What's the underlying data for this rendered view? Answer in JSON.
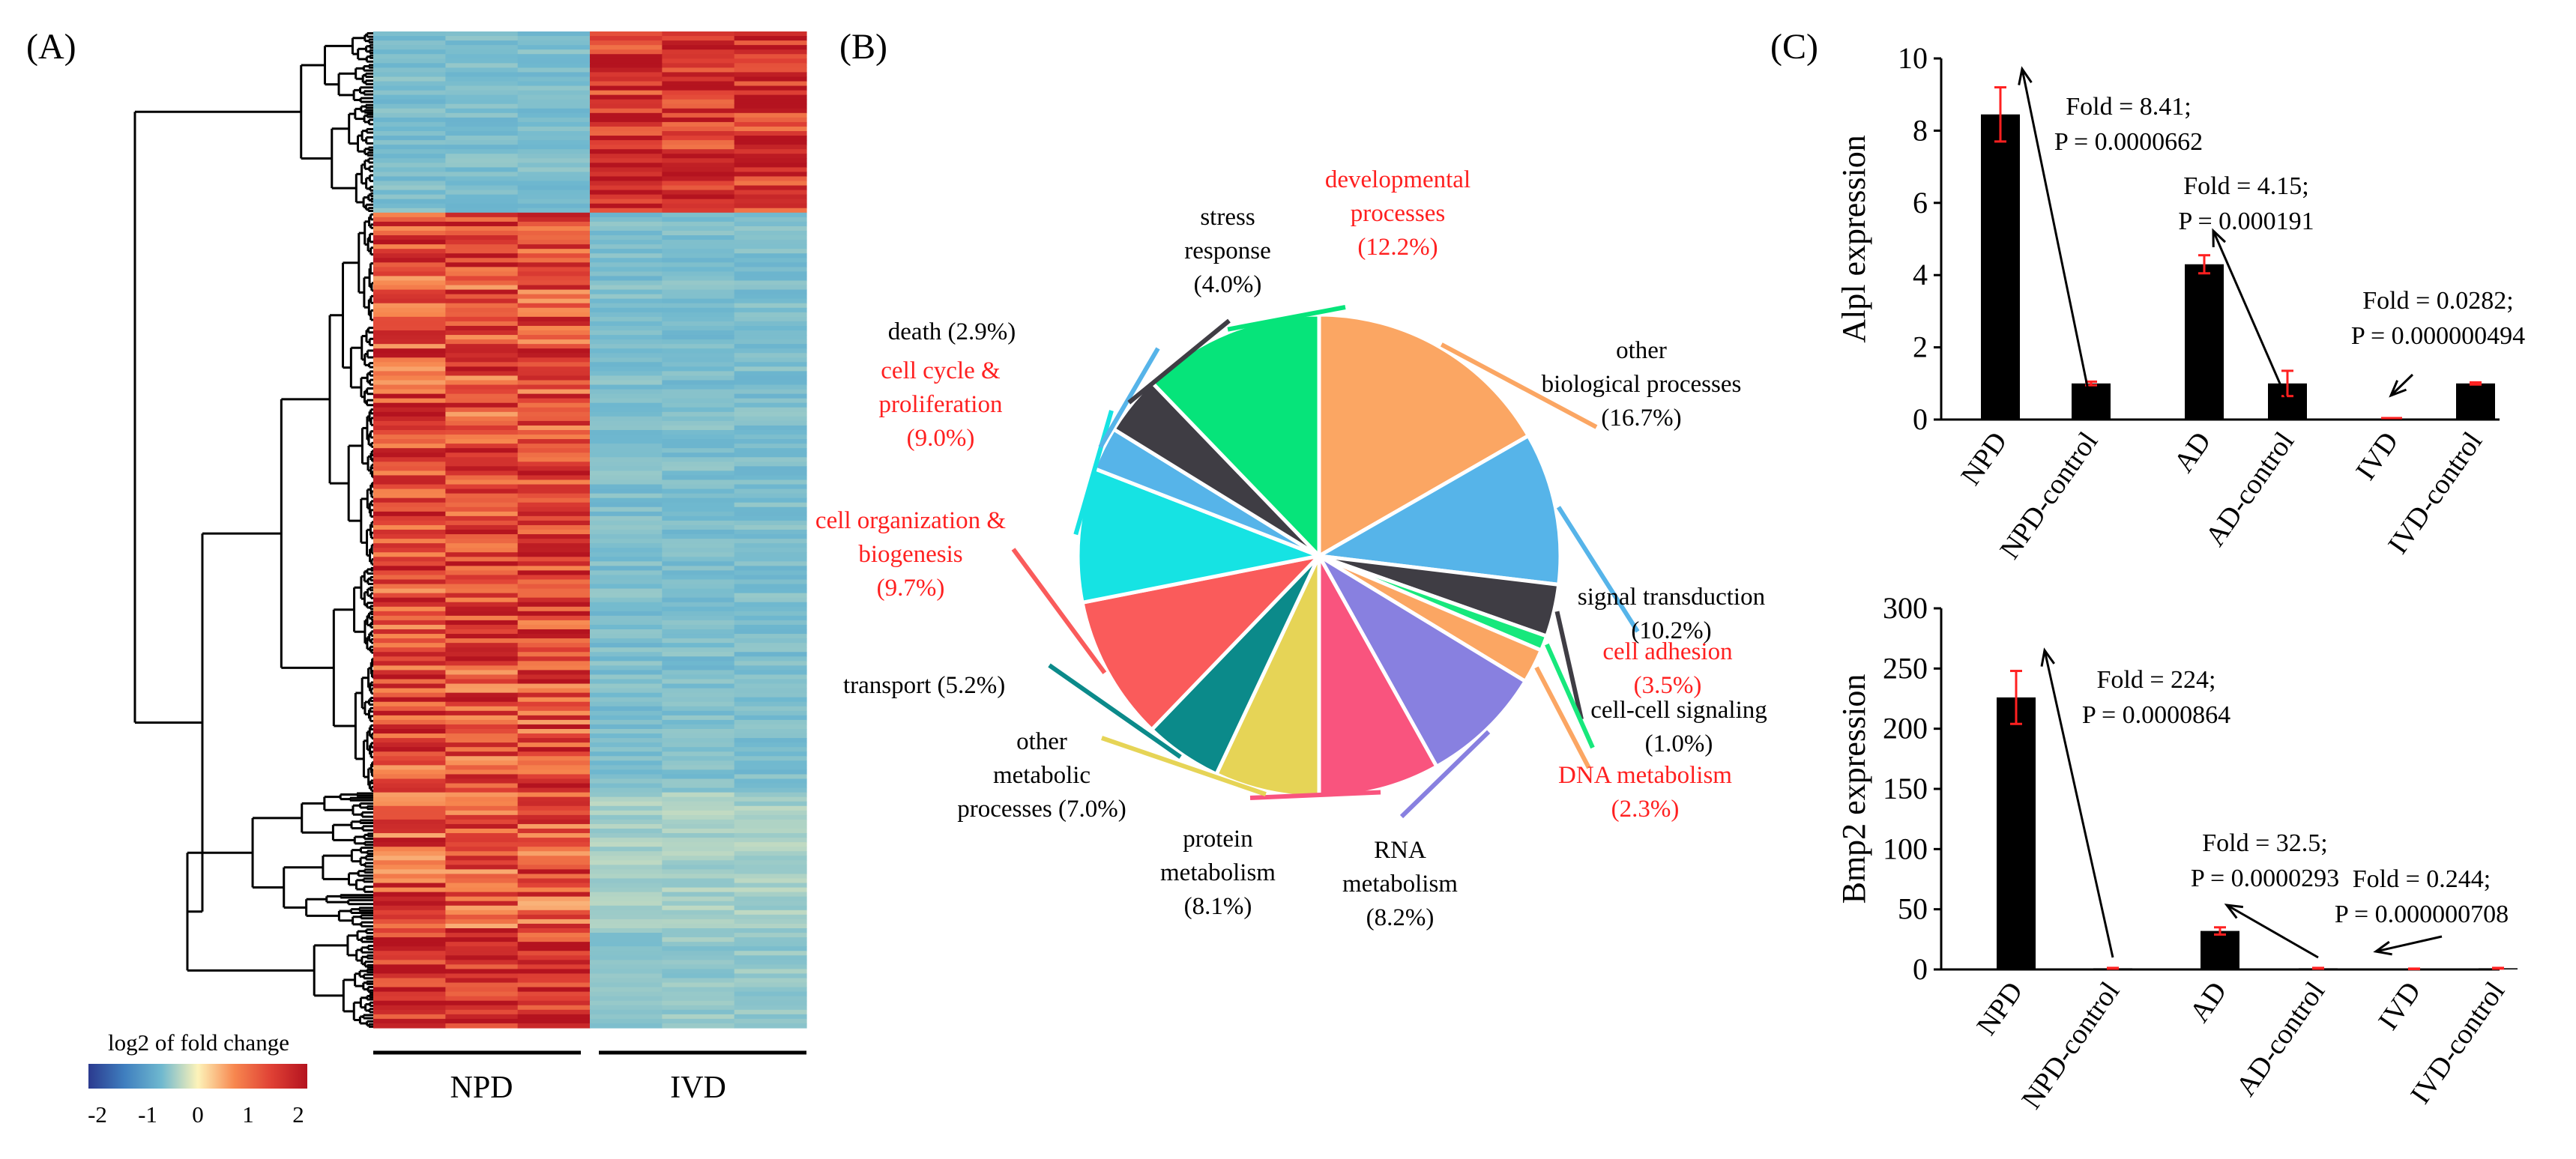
{
  "colors": {
    "black": "#000000",
    "red": "#ff2020",
    "hm_low": "#5aa9c4",
    "hm_high": "#d8232a",
    "colorbar": [
      "#2b3a8f",
      "#3f7fbf",
      "#6fb8cf",
      "#fdf3b9",
      "#f7874f",
      "#e04135",
      "#b4131f"
    ]
  },
  "chart_data": [
    {
      "panel": "(A)",
      "type": "heatmap",
      "column_groups": [
        "NPD",
        "IVD"
      ],
      "columns_per_group": 3,
      "colorbar": {
        "title": "log2 of fold change",
        "ticks": [
          "-2",
          "-1",
          "0",
          "1",
          "2"
        ],
        "range": [
          -2,
          2
        ]
      },
      "row_blocks": [
        {
          "name": "block1",
          "rows": 40,
          "npd": -0.6,
          "ivd": 1.6
        },
        {
          "name": "block2",
          "rows": 128,
          "npd": 1.3,
          "ivd": -0.6
        },
        {
          "name": "block3",
          "rows": 30,
          "npd": 1.2,
          "ivd": -0.4
        },
        {
          "name": "block4",
          "rows": 22,
          "npd": 1.6,
          "ivd": -0.5
        }
      ]
    },
    {
      "panel": "(B)",
      "type": "pie",
      "slices": [
        {
          "label": "other biological processes",
          "value": 16.7,
          "pct": "(16.7%)",
          "color": "#fba663",
          "text_color": "#000000"
        },
        {
          "label": "signal transduction",
          "value": 10.2,
          "pct": "(10.2%)",
          "color": "#56b4e9",
          "text_color": "#000000"
        },
        {
          "label": "cell adhesion",
          "value": 3.5,
          "pct": "(3.5%)",
          "color": "#3f3d44",
          "text_color": "#ff2020"
        },
        {
          "label": "cell-cell signaling",
          "value": 1.0,
          "pct": "(1.0%)",
          "color": "#17e87c",
          "text_color": "#000000"
        },
        {
          "label": "DNA metabolism",
          "value": 2.3,
          "pct": "(2.3%)",
          "color": "#fba663",
          "text_color": "#ff2020"
        },
        {
          "label": "RNA metabolism",
          "value": 8.2,
          "pct": "(8.2%)",
          "color": "#8880e0",
          "text_color": "#000000"
        },
        {
          "label": "protein metabolism",
          "value": 8.1,
          "pct": "(8.1%)",
          "color": "#f9547e",
          "text_color": "#000000"
        },
        {
          "label": "other metabolic processes",
          "value": 7.0,
          "pct": "(7.0%)",
          "color": "#e6d456",
          "text_color": "#000000"
        },
        {
          "label": "transport",
          "value": 5.2,
          "pct": "(5.2%)",
          "color": "#0b8a8a",
          "text_color": "#000000"
        },
        {
          "label": "cell organization & biogenesis",
          "value": 9.7,
          "pct": "(9.7%)",
          "color": "#fa5b5b",
          "text_color": "#ff2020"
        },
        {
          "label": "cell cycle & proliferation",
          "value": 9.0,
          "pct": "(9.0%)",
          "color": "#16e3e3",
          "text_color": "#ff2020"
        },
        {
          "label": "death",
          "value": 2.9,
          "pct": "(2.9%)",
          "color": "#56b4e9",
          "text_color": "#000000"
        },
        {
          "label": "stress response",
          "value": 4.0,
          "pct": "(4.0%)",
          "color": "#3f3d44",
          "text_color": "#000000"
        },
        {
          "label": "developmental processes",
          "value": 12.2,
          "pct": "(12.2%)",
          "color": "#06e47a",
          "text_color": "#ff2020"
        }
      ],
      "label_lines": [
        [
          "other",
          "biological processes",
          "(16.7%)"
        ],
        [
          "signal transduction",
          "(10.2%)"
        ],
        [
          "cell adhesion",
          "(3.5%)"
        ],
        [
          "cell-cell signaling",
          "(1.0%)"
        ],
        [
          "DNA metabolism",
          "(2.3%)"
        ],
        [
          "RNA",
          "metabolism",
          "(8.2%)"
        ],
        [
          "protein",
          "metabolism",
          "(8.1%)"
        ],
        [
          "other",
          "metabolic",
          "processes (7.0%)"
        ],
        [
          "transport (5.2%)"
        ],
        [
          "cell organization &",
          "biogenesis",
          "(9.7%)"
        ],
        [
          "cell cycle &",
          "proliferation",
          "(9.0%)"
        ],
        [
          "death (2.9%)"
        ],
        [
          "stress",
          "response",
          "(4.0%)"
        ],
        [
          "developmental",
          "processes",
          "(12.2%)"
        ]
      ]
    },
    {
      "panel": "(C)",
      "type": "bar",
      "ylabel": "Alpl expression",
      "ylim": [
        0,
        10
      ],
      "yticks": [
        0,
        2,
        4,
        6,
        8,
        10
      ],
      "categories": [
        "NPD",
        "NPD-control",
        "AD",
        "AD-control",
        "IVD",
        "IVD-control"
      ],
      "values": [
        8.45,
        1.0,
        4.3,
        1.0,
        0.03,
        1.0
      ],
      "errors": [
        0.75,
        0.05,
        0.25,
        0.35,
        0.0,
        0.03
      ],
      "annotations": [
        {
          "lines": [
            "Fold = 8.41;",
            "P = 0.0000662"
          ]
        },
        {
          "lines": [
            "Fold = 4.15;",
            "P = 0.000191"
          ]
        },
        {
          "lines": [
            "Fold = 0.0282;",
            "P = 0.000000494"
          ]
        }
      ]
    },
    {
      "panel": "(C)",
      "type": "bar",
      "ylabel": "Bmp2 expression",
      "ylim": [
        0,
        300
      ],
      "yticks": [
        0,
        50,
        100,
        150,
        200,
        250,
        300
      ],
      "categories": [
        "NPD",
        "NPD-control",
        "AD",
        "AD-control",
        "IVD",
        "IVD-control"
      ],
      "values": [
        226,
        1.0,
        32,
        1.0,
        0.5,
        1.0
      ],
      "errors": [
        22,
        0.3,
        3,
        0.3,
        0.2,
        0.3
      ],
      "annotations": [
        {
          "lines": [
            "Fold = 224;",
            "P = 0.0000864"
          ]
        },
        {
          "lines": [
            "Fold = 32.5;",
            "P = 0.0000293"
          ]
        },
        {
          "lines": [
            "Fold = 0.244;",
            "P = 0.000000708"
          ]
        }
      ]
    }
  ]
}
